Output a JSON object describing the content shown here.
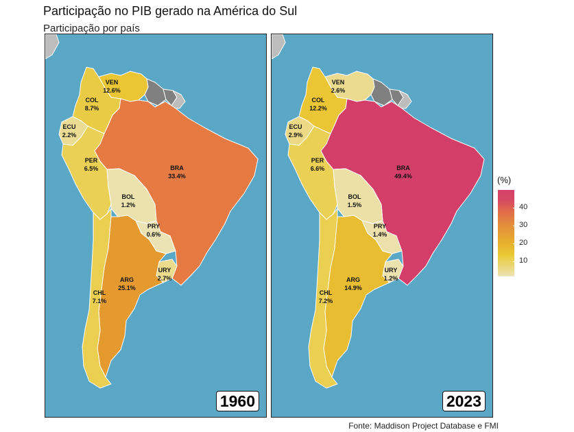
{
  "title": "Participação no PIB gerado na América do Sul",
  "subtitle": "Participação por país",
  "source": "Fonte: Maddison Project Database e FMI",
  "legend": {
    "title": "(%)",
    "ticks": [
      "10",
      "20",
      "30",
      "40"
    ]
  },
  "colors": {
    "ocean": "#5aa8c6",
    "no_data": "#808080",
    "outside": "#bdbdbd",
    "low": "#ece3b4",
    "mid": "#e6ad2e",
    "high": "#d43f6a"
  },
  "panels": [
    {
      "year": "1960",
      "countries": {
        "VEN": {
          "code": "VEN",
          "value": "12.6%",
          "color": "#eac534"
        },
        "COL": {
          "code": "COL",
          "value": "8.7%",
          "color": "#eacb45"
        },
        "ECU": {
          "code": "ECU",
          "value": "2.2%",
          "color": "#ebdc94"
        },
        "PER": {
          "code": "PER",
          "value": "6.5%",
          "color": "#ead055"
        },
        "BRA": {
          "code": "BRA",
          "value": "33.4%",
          "color": "#e57b43"
        },
        "BOL": {
          "code": "BOL",
          "value": "1.2%",
          "color": "#ece2ae"
        },
        "PRY": {
          "code": "PRY",
          "value": "0.6%",
          "color": "#ece3b4"
        },
        "URY": {
          "code": "URY",
          "value": "2.7%",
          "color": "#ebdb8c"
        },
        "ARG": {
          "code": "ARG",
          "value": "25.1%",
          "color": "#e59a2f"
        },
        "CHL": {
          "code": "CHL",
          "value": "7.1%",
          "color": "#eacf51"
        }
      }
    },
    {
      "year": "2023",
      "countries": {
        "VEN": {
          "code": "VEN",
          "value": "2.6%",
          "color": "#ebdb8e"
        },
        "COL": {
          "code": "COL",
          "value": "12.2%",
          "color": "#eac534"
        },
        "ECU": {
          "code": "ECU",
          "value": "2.9%",
          "color": "#ebd986"
        },
        "PER": {
          "code": "PER",
          "value": "6.6%",
          "color": "#ead054"
        },
        "BRA": {
          "code": "BRA",
          "value": "49.4%",
          "color": "#d43f6a"
        },
        "BOL": {
          "code": "BOL",
          "value": "1.5%",
          "color": "#ece0a6"
        },
        "PRY": {
          "code": "PRY",
          "value": "1.4%",
          "color": "#ece1aa"
        },
        "URY": {
          "code": "URY",
          "value": "1.2%",
          "color": "#ece2ae"
        },
        "ARG": {
          "code": "ARG",
          "value": "14.9%",
          "color": "#e9bd32"
        },
        "CHL": {
          "code": "CHL",
          "value": "7.2%",
          "color": "#eacf51"
        }
      }
    }
  ]
}
